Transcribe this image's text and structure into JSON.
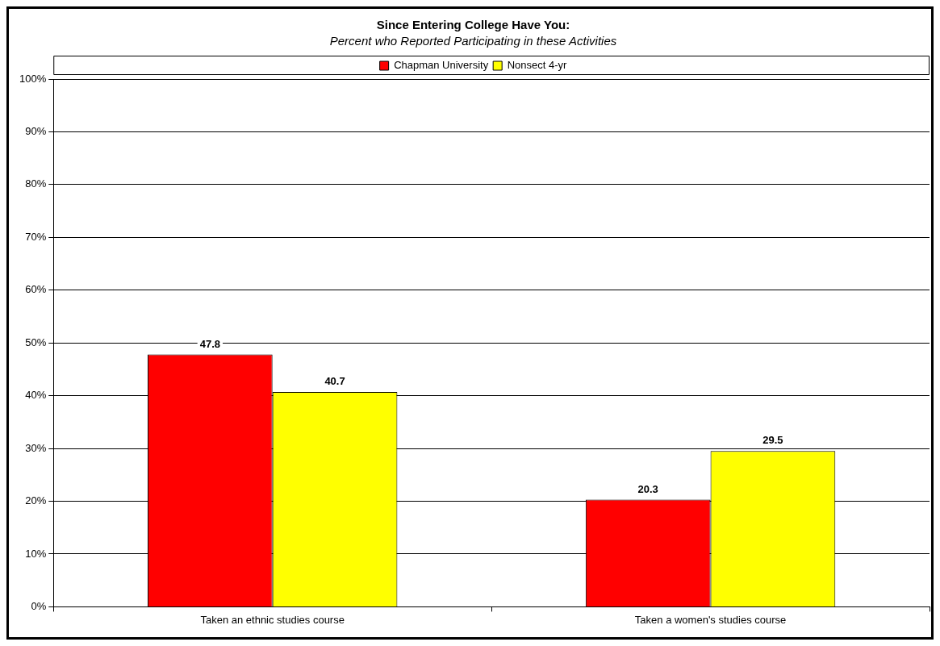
{
  "chart_data": {
    "type": "bar",
    "title": "Since Entering College Have You:",
    "subtitle": "Percent who Reported Participating in these Activities",
    "categories": [
      "Taken an ethnic studies course",
      "Taken a women's studies course"
    ],
    "series": [
      {
        "name": "Chapman University",
        "color": "#ff0000",
        "values": [
          47.8,
          20.3
        ]
      },
      {
        "name": "Nonsect 4-yr",
        "color": "#ffff00",
        "values": [
          40.7,
          29.5
        ]
      }
    ],
    "ylim": [
      0,
      100
    ],
    "yticks": [
      {
        "value": 0,
        "label": "0%"
      },
      {
        "value": 10,
        "label": "10%"
      },
      {
        "value": 20,
        "label": "20%"
      },
      {
        "value": 30,
        "label": "30%"
      },
      {
        "value": 40,
        "label": "40%"
      },
      {
        "value": 50,
        "label": "50%"
      },
      {
        "value": 60,
        "label": "60%"
      },
      {
        "value": 70,
        "label": "70%"
      },
      {
        "value": 80,
        "label": "80%"
      },
      {
        "value": 90,
        "label": "90%"
      },
      {
        "value": 100,
        "label": "100%"
      }
    ],
    "grid": "y",
    "legend": "top",
    "data_labels": true
  }
}
